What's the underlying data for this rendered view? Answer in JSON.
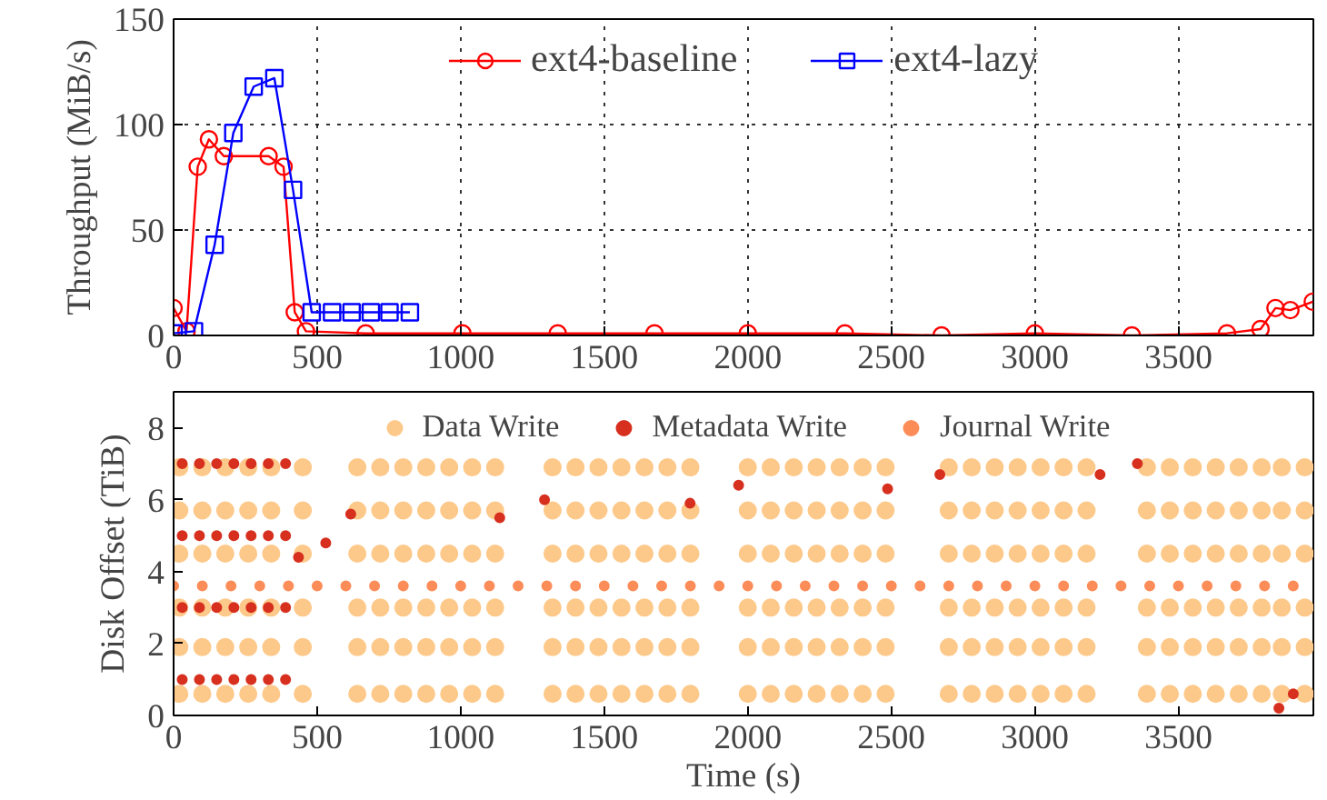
{
  "chart_data": [
    {
      "type": "line",
      "ylabel": "Throughput (MiB/s)",
      "xlim": [
        0,
        3970
      ],
      "xticks": [
        0,
        500,
        1000,
        1500,
        2000,
        2500,
        3000,
        3500
      ],
      "ylim": [
        0,
        150
      ],
      "yticks": [
        0,
        50,
        100,
        150
      ],
      "grid": true,
      "legend": "top",
      "line_style": "solid",
      "series": [
        {
          "name": "ext4-baseline",
          "color": "#ff0000",
          "marker": "circle",
          "x": [
            0,
            45,
            84,
            123,
            175,
            331,
            383,
            422,
            461,
            669,
            1006,
            1338,
            1675,
            2000,
            2338,
            2675,
            3000,
            3338,
            3669,
            3786,
            3838,
            3890,
            3968
          ],
          "values": [
            13,
            2,
            80,
            93,
            85,
            85,
            80,
            11,
            2,
            1,
            1,
            1,
            1,
            1,
            1,
            0,
            1,
            0,
            1,
            3,
            13,
            12,
            16
          ]
        },
        {
          "name": "ext4-lazy",
          "color": "#0000ff",
          "marker": "square",
          "x": [
            0,
            71,
            143,
            208,
            279,
            351,
            416,
            481,
            552,
            620,
            687,
            752,
            823
          ],
          "values": [
            1,
            2,
            43,
            96,
            118,
            122,
            69,
            11,
            11,
            11,
            11,
            11,
            11
          ]
        }
      ]
    },
    {
      "type": "scatter",
      "xlabel": "Time (s)",
      "ylabel": "Disk Offset (TiB)",
      "xlim": [
        0,
        3970
      ],
      "xticks": [
        0,
        500,
        1000,
        1500,
        2000,
        2500,
        3000,
        3500
      ],
      "ylim": [
        0,
        9
      ],
      "yticks": [
        0,
        2,
        4,
        6,
        8
      ],
      "grid": false,
      "legend": "top",
      "marker": "circle",
      "series": [
        {
          "name": "Data Write",
          "color": "#fdc98a",
          "x": [
            20,
            20,
            20,
            20,
            20,
            20,
            100,
            100,
            100,
            100,
            100,
            100,
            180,
            180,
            180,
            180,
            180,
            180,
            260,
            260,
            260,
            260,
            260,
            260,
            340,
            340,
            340,
            340,
            340,
            340,
            450,
            450,
            450,
            450,
            450,
            450,
            640,
            640,
            640,
            640,
            640,
            640,
            720,
            720,
            720,
            720,
            720,
            720,
            800,
            800,
            800,
            800,
            800,
            800,
            880,
            880,
            880,
            880,
            880,
            880,
            960,
            960,
            960,
            960,
            960,
            960,
            1040,
            1040,
            1040,
            1040,
            1040,
            1040,
            1120,
            1120,
            1120,
            1120,
            1120,
            1120,
            1320,
            1320,
            1320,
            1320,
            1320,
            1320,
            1400,
            1400,
            1400,
            1400,
            1400,
            1400,
            1480,
            1480,
            1480,
            1480,
            1480,
            1480,
            1560,
            1560,
            1560,
            1560,
            1560,
            1560,
            1640,
            1640,
            1640,
            1640,
            1640,
            1640,
            1720,
            1720,
            1720,
            1720,
            1720,
            1720,
            1800,
            1800,
            1800,
            1800,
            1800,
            1800,
            2000,
            2000,
            2000,
            2000,
            2000,
            2000,
            2080,
            2080,
            2080,
            2080,
            2080,
            2080,
            2160,
            2160,
            2160,
            2160,
            2160,
            2160,
            2240,
            2240,
            2240,
            2240,
            2240,
            2240,
            2320,
            2320,
            2320,
            2320,
            2320,
            2320,
            2400,
            2400,
            2400,
            2400,
            2400,
            2400,
            2480,
            2480,
            2480,
            2480,
            2480,
            2480,
            2700,
            2700,
            2700,
            2700,
            2700,
            2700,
            2780,
            2780,
            2780,
            2780,
            2780,
            2780,
            2860,
            2860,
            2860,
            2860,
            2860,
            2860,
            2940,
            2940,
            2940,
            2940,
            2940,
            2940,
            3020,
            3020,
            3020,
            3020,
            3020,
            3020,
            3100,
            3100,
            3100,
            3100,
            3100,
            3100,
            3180,
            3180,
            3180,
            3180,
            3180,
            3180,
            3390,
            3390,
            3390,
            3390,
            3390,
            3390,
            3470,
            3470,
            3470,
            3470,
            3470,
            3470,
            3550,
            3550,
            3550,
            3550,
            3550,
            3550,
            3630,
            3630,
            3630,
            3630,
            3630,
            3630,
            3710,
            3710,
            3710,
            3710,
            3710,
            3710,
            3790,
            3790,
            3790,
            3790,
            3790,
            3790,
            3860,
            3860,
            3860,
            3860,
            3860,
            3860,
            3940,
            3940,
            3940,
            3940,
            3940,
            3940
          ],
          "values": [
            0.6,
            1.9,
            3.0,
            4.5,
            5.7,
            6.9,
            0.6,
            1.9,
            3.0,
            4.5,
            5.7,
            6.9,
            0.6,
            1.9,
            3.0,
            4.5,
            5.7,
            6.9,
            0.6,
            1.9,
            3.0,
            4.5,
            5.7,
            6.9,
            0.6,
            1.9,
            3.0,
            4.5,
            5.7,
            6.9,
            0.6,
            1.9,
            3.0,
            4.5,
            5.7,
            6.9,
            0.6,
            1.9,
            3.0,
            4.5,
            5.7,
            6.9,
            0.6,
            1.9,
            3.0,
            4.5,
            5.7,
            6.9,
            0.6,
            1.9,
            3.0,
            4.5,
            5.7,
            6.9,
            0.6,
            1.9,
            3.0,
            4.5,
            5.7,
            6.9,
            0.6,
            1.9,
            3.0,
            4.5,
            5.7,
            6.9,
            0.6,
            1.9,
            3.0,
            4.5,
            5.7,
            6.9,
            0.6,
            1.9,
            3.0,
            4.5,
            5.7,
            6.9,
            0.6,
            1.9,
            3.0,
            4.5,
            5.7,
            6.9,
            0.6,
            1.9,
            3.0,
            4.5,
            5.7,
            6.9,
            0.6,
            1.9,
            3.0,
            4.5,
            5.7,
            6.9,
            0.6,
            1.9,
            3.0,
            4.5,
            5.7,
            6.9,
            0.6,
            1.9,
            3.0,
            4.5,
            5.7,
            6.9,
            0.6,
            1.9,
            3.0,
            4.5,
            5.7,
            6.9,
            0.6,
            1.9,
            3.0,
            4.5,
            5.7,
            6.9,
            0.6,
            1.9,
            3.0,
            4.5,
            5.7,
            6.9,
            0.6,
            1.9,
            3.0,
            4.5,
            5.7,
            6.9,
            0.6,
            1.9,
            3.0,
            4.5,
            5.7,
            6.9,
            0.6,
            1.9,
            3.0,
            4.5,
            5.7,
            6.9,
            0.6,
            1.9,
            3.0,
            4.5,
            5.7,
            6.9,
            0.6,
            1.9,
            3.0,
            4.5,
            5.7,
            6.9,
            0.6,
            1.9,
            3.0,
            4.5,
            5.7,
            6.9,
            0.6,
            1.9,
            3.0,
            4.5,
            5.7,
            6.9,
            0.6,
            1.9,
            3.0,
            4.5,
            5.7,
            6.9,
            0.6,
            1.9,
            3.0,
            4.5,
            5.7,
            6.9,
            0.6,
            1.9,
            3.0,
            4.5,
            5.7,
            6.9,
            0.6,
            1.9,
            3.0,
            4.5,
            5.7,
            6.9,
            0.6,
            1.9,
            3.0,
            4.5,
            5.7,
            6.9,
            0.6,
            1.9,
            3.0,
            4.5,
            5.7,
            6.9,
            0.6,
            1.9,
            3.0,
            4.5,
            5.7,
            6.9,
            0.6,
            1.9,
            3.0,
            4.5,
            5.7,
            6.9,
            0.6,
            1.9,
            3.0,
            4.5,
            5.7,
            6.9,
            0.6,
            1.9,
            3.0,
            4.5,
            5.7,
            6.9,
            0.6,
            1.9,
            3.0,
            4.5,
            5.7,
            6.9,
            0.6,
            1.9,
            3.0,
            4.5,
            5.7,
            6.9,
            0.6,
            1.9,
            3.0,
            4.5,
            5.7,
            6.9,
            0.6,
            1.9,
            3.0,
            4.5,
            5.7,
            6.9
          ]
        },
        {
          "name": "Metadata Write",
          "color": "#d7301f",
          "x": [
            30,
            30,
            30,
            30,
            90,
            90,
            90,
            90,
            150,
            150,
            150,
            150,
            210,
            210,
            210,
            210,
            270,
            270,
            270,
            270,
            330,
            330,
            330,
            330,
            390,
            390,
            390,
            390,
            435,
            530,
            617,
            1136,
            1292,
            1799,
            1968,
            2487,
            2669,
            3227,
            3357,
            3850,
            3900
          ],
          "values": [
            1,
            3,
            5,
            7,
            1,
            3,
            5,
            7,
            1,
            3,
            5,
            7,
            1,
            3,
            5,
            7,
            1,
            3,
            5,
            7,
            1,
            3,
            5,
            7,
            1,
            3,
            5,
            7,
            4.4,
            4.8,
            5.6,
            5.5,
            6.0,
            5.9,
            6.4,
            6.3,
            6.7,
            6.7,
            7.0,
            0.2,
            0.6
          ]
        },
        {
          "name": "Journal Write",
          "color": "#fc8d59",
          "x": [
            0,
            100,
            200,
            300,
            400,
            500,
            600,
            700,
            800,
            900,
            1000,
            1100,
            1200,
            1300,
            1400,
            1500,
            1600,
            1700,
            1800,
            1900,
            2000,
            2100,
            2200,
            2300,
            2400,
            2500,
            2600,
            2700,
            2800,
            2900,
            3000,
            3100,
            3200,
            3300,
            3400,
            3500,
            3600,
            3700,
            3800,
            3900
          ],
          "values": [
            3.6,
            3.6,
            3.6,
            3.6,
            3.6,
            3.6,
            3.6,
            3.6,
            3.6,
            3.6,
            3.6,
            3.6,
            3.6,
            3.6,
            3.6,
            3.6,
            3.6,
            3.6,
            3.6,
            3.6,
            3.6,
            3.6,
            3.6,
            3.6,
            3.6,
            3.6,
            3.6,
            3.6,
            3.6,
            3.6,
            3.6,
            3.6,
            3.6,
            3.6,
            3.6,
            3.6,
            3.6,
            3.6,
            3.6,
            3.6
          ]
        }
      ]
    }
  ]
}
